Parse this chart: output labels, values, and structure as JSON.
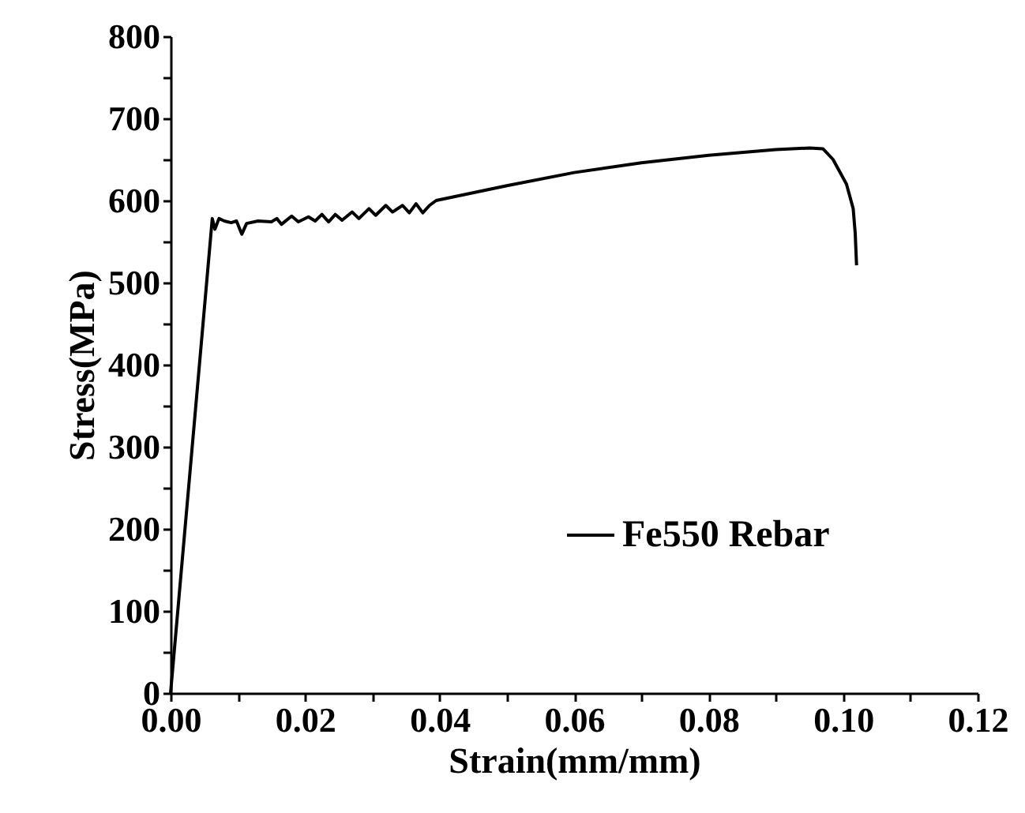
{
  "chart_data": {
    "type": "line",
    "xlabel": "Strain(mm/mm)",
    "ylabel": "Stress(MPa)",
    "xlim": [
      0,
      0.12
    ],
    "ylim": [
      0,
      800
    ],
    "xticks": [
      {
        "value": 0,
        "label": "0.00"
      },
      {
        "value": 0.01,
        "label": null
      },
      {
        "value": 0.02,
        "label": "0.02"
      },
      {
        "value": 0.03,
        "label": null
      },
      {
        "value": 0.04,
        "label": "0.04"
      },
      {
        "value": 0.05,
        "label": null
      },
      {
        "value": 0.06,
        "label": "0.06"
      },
      {
        "value": 0.07,
        "label": null
      },
      {
        "value": 0.08,
        "label": "0.08"
      },
      {
        "value": 0.09,
        "label": null
      },
      {
        "value": 0.1,
        "label": "0.10"
      },
      {
        "value": 0.11,
        "label": null
      },
      {
        "value": 0.12,
        "label": "0.12"
      }
    ],
    "yticks": [
      0,
      {
        "value": 50,
        "label": null
      },
      100,
      {
        "value": 150,
        "label": null
      },
      200,
      {
        "value": 250,
        "label": null
      },
      300,
      {
        "value": 350,
        "label": null
      },
      400,
      {
        "value": 450,
        "label": null
      },
      500,
      {
        "value": 550,
        "label": null
      },
      600,
      {
        "value": 650,
        "label": null
      },
      700,
      {
        "value": 750,
        "label": null
      },
      800
    ],
    "grid": false,
    "legend": "bottom right",
    "marker": "none",
    "line_style": "solid",
    "series": [
      {
        "name": "Fe550 Rebar",
        "color": "#000000",
        "x": [
          0,
          0.0062,
          0.0066,
          0.0072,
          0.008,
          0.009,
          0.0098,
          0.0106,
          0.0113,
          0.013,
          0.015,
          0.0158,
          0.0165,
          0.018,
          0.019,
          0.0205,
          0.0215,
          0.0225,
          0.0235,
          0.0245,
          0.0255,
          0.027,
          0.028,
          0.0295,
          0.0305,
          0.032,
          0.033,
          0.0345,
          0.0355,
          0.0365,
          0.0375,
          0.0385,
          0.0395,
          0.05,
          0.06,
          0.07,
          0.08,
          0.09,
          0.095,
          0.097,
          0.0985,
          0.1005,
          0.1015,
          0.1018,
          0.102
        ],
        "values": [
          0,
          578,
          565,
          578,
          575,
          573,
          575,
          559,
          572,
          575,
          574,
          578,
          571,
          581,
          574,
          580,
          575,
          583,
          574,
          583,
          576,
          586,
          578,
          590,
          582,
          594,
          586,
          594,
          585,
          596,
          585,
          594,
          600,
          618,
          634,
          646,
          655,
          662,
          664,
          663,
          650,
          620,
          590,
          560,
          521
        ]
      }
    ]
  }
}
